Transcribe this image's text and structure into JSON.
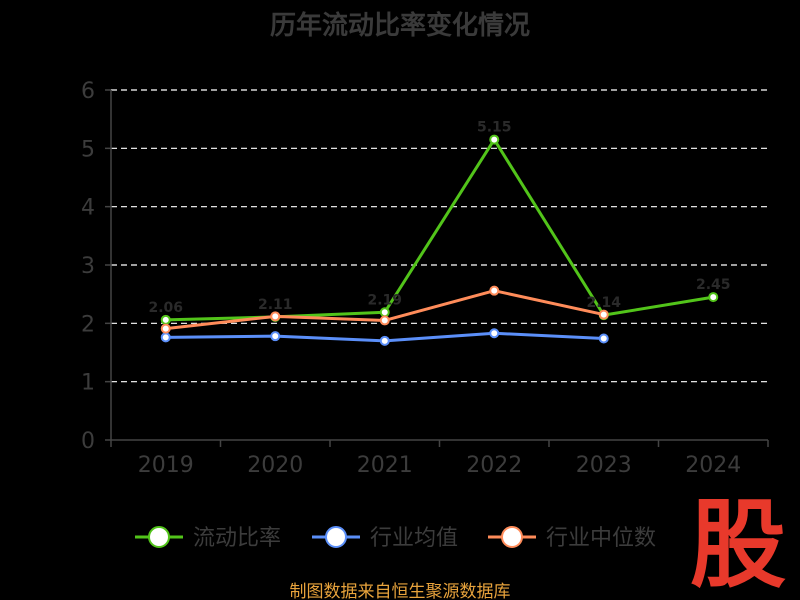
{
  "chart_data": {
    "type": "line",
    "title": "历年流动比率变化情况",
    "categories": [
      "2019",
      "2020",
      "2021",
      "2022",
      "2023",
      "2024"
    ],
    "ylim": [
      0,
      6
    ],
    "yticks": [
      "0",
      "1",
      "2",
      "3",
      "4",
      "5",
      "6"
    ],
    "grid": true,
    "legend_position": "bottom",
    "series": [
      {
        "name": "流动比率",
        "color": "#52c41a",
        "values": [
          2.06,
          2.11,
          2.19,
          5.15,
          2.14,
          2.45
        ],
        "data_labels": [
          "2.06",
          "2.11",
          "2.19",
          "5.15",
          "2.14",
          "2.45"
        ]
      },
      {
        "name": "行业均值",
        "color": "#5b8ff9",
        "values": [
          1.76,
          1.78,
          1.7,
          1.83,
          1.74,
          null
        ]
      },
      {
        "name": "行业中位数",
        "color": "#ff8c5a",
        "values": [
          1.91,
          2.12,
          2.05,
          2.56,
          2.15,
          null
        ]
      }
    ]
  },
  "footer": {
    "source": "制图数据来自恒生聚源数据库",
    "source_color": "#e8a33c",
    "watermark": "股",
    "watermark_color": "#e8392b"
  }
}
